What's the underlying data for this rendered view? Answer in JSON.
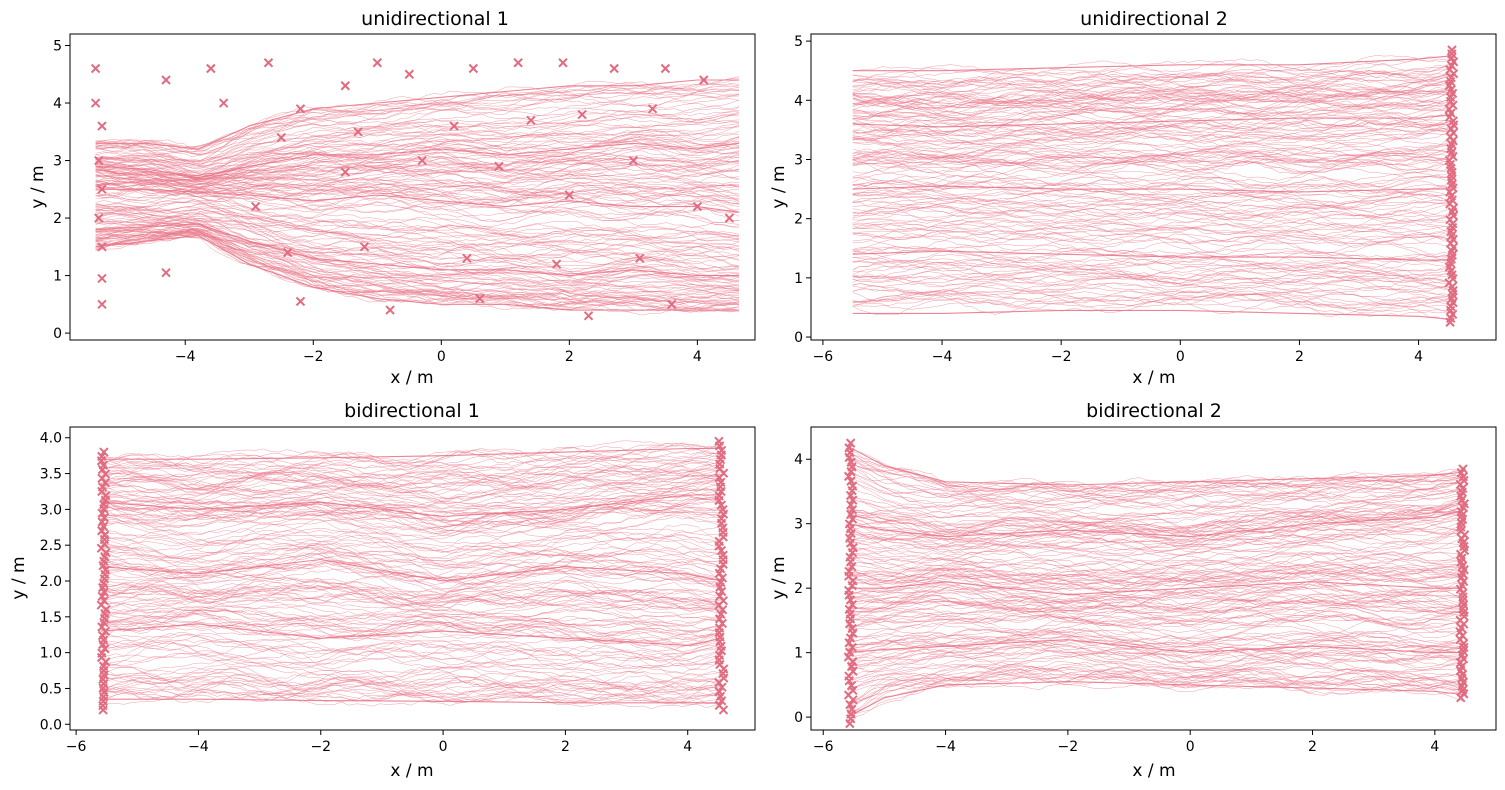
{
  "figure": {
    "accent_color": "#e8788a",
    "marker_color": "#e06c80"
  },
  "chart_data": [
    {
      "type": "line",
      "title": "unidirectional 1",
      "xlabel": "x / m",
      "ylabel": "y / m",
      "xlim": [
        -5.8,
        4.9
      ],
      "ylim": [
        -0.12,
        5.2
      ],
      "xticks": [
        -4,
        -2,
        0,
        2,
        4
      ],
      "xtick_labels": [
        "−4",
        "−2",
        "0",
        "2",
        "4"
      ],
      "yticks": [
        0,
        1,
        2,
        3,
        4,
        5
      ],
      "ytick_labels": [
        "0",
        "1",
        "2",
        "3",
        "4",
        "5"
      ],
      "series": [
        {
          "x": [
            -5.4,
            -4.6,
            -3.8,
            -3.0,
            -2.0,
            -1.0,
            0.0,
            1.0,
            2.0,
            3.0,
            4.0,
            4.65
          ],
          "y": [
            3.3,
            3.3,
            3.2,
            3.6,
            3.9,
            4.0,
            4.1,
            4.2,
            4.3,
            4.3,
            4.4,
            4.4
          ]
        },
        {
          "x": [
            -5.4,
            -4.6,
            -3.8,
            -3.0,
            -2.0,
            -1.0,
            0.0,
            1.0,
            2.0,
            3.0,
            4.0,
            4.65
          ],
          "y": [
            2.9,
            2.85,
            2.7,
            2.9,
            3.1,
            3.1,
            3.2,
            3.1,
            3.2,
            3.3,
            3.2,
            3.3
          ]
        },
        {
          "x": [
            -5.4,
            -4.6,
            -3.8,
            -3.0,
            -2.0,
            -1.0,
            0.0,
            1.0,
            2.0,
            3.0,
            4.0,
            4.65
          ],
          "y": [
            2.5,
            2.5,
            2.45,
            2.4,
            2.3,
            2.4,
            2.3,
            2.2,
            2.3,
            2.2,
            2.2,
            2.1
          ]
        },
        {
          "x": [
            -5.4,
            -4.6,
            -3.8,
            -3.0,
            -2.0,
            -1.0,
            0.0,
            1.0,
            2.0,
            3.0,
            4.0,
            4.65
          ],
          "y": [
            1.8,
            1.85,
            1.9,
            1.6,
            1.3,
            1.2,
            1.1,
            1.1,
            1.0,
            1.1,
            1.0,
            1.0
          ]
        },
        {
          "x": [
            -5.4,
            -4.6,
            -3.8,
            -3.0,
            -2.0,
            -1.0,
            0.0,
            1.0,
            2.0,
            3.0,
            4.0,
            4.65
          ],
          "y": [
            1.5,
            1.6,
            1.7,
            1.2,
            0.8,
            0.6,
            0.5,
            0.5,
            0.4,
            0.4,
            0.4,
            0.4
          ]
        }
      ],
      "start_markers": [
        {
          "x": -5.4,
          "y": 4.6
        },
        {
          "x": -5.4,
          "y": 4.0
        },
        {
          "x": -5.3,
          "y": 3.6
        },
        {
          "x": -5.35,
          "y": 3.0
        },
        {
          "x": -5.3,
          "y": 2.5
        },
        {
          "x": -5.35,
          "y": 2.0
        },
        {
          "x": -5.3,
          "y": 1.5
        },
        {
          "x": -5.3,
          "y": 0.95
        },
        {
          "x": -5.3,
          "y": 0.5
        },
        {
          "x": -4.3,
          "y": 4.4
        },
        {
          "x": -3.6,
          "y": 4.6
        },
        {
          "x": -4.3,
          "y": 1.05
        },
        {
          "x": -3.4,
          "y": 4.0
        },
        {
          "x": -2.7,
          "y": 4.7
        },
        {
          "x": -2.2,
          "y": 3.9
        },
        {
          "x": -1.5,
          "y": 4.3
        },
        {
          "x": -1.0,
          "y": 4.7
        },
        {
          "x": -0.5,
          "y": 4.5
        },
        {
          "x": 0.5,
          "y": 4.6
        },
        {
          "x": 1.2,
          "y": 4.7
        },
        {
          "x": 1.9,
          "y": 4.7
        },
        {
          "x": 2.7,
          "y": 4.6
        },
        {
          "x": 3.5,
          "y": 4.6
        },
        {
          "x": 4.1,
          "y": 4.4
        },
        {
          "x": -2.5,
          "y": 3.4
        },
        {
          "x": -1.3,
          "y": 3.5
        },
        {
          "x": 0.2,
          "y": 3.6
        },
        {
          "x": 1.4,
          "y": 3.7
        },
        {
          "x": 2.2,
          "y": 3.8
        },
        {
          "x": 3.3,
          "y": 3.9
        },
        {
          "x": -2.9,
          "y": 2.2
        },
        {
          "x": -1.5,
          "y": 2.8
        },
        {
          "x": -0.3,
          "y": 3.0
        },
        {
          "x": 0.9,
          "y": 2.9
        },
        {
          "x": 2.0,
          "y": 2.4
        },
        {
          "x": 3.0,
          "y": 3.0
        },
        {
          "x": 4.0,
          "y": 2.2
        },
        {
          "x": -2.4,
          "y": 1.4
        },
        {
          "x": -1.2,
          "y": 1.5
        },
        {
          "x": 0.4,
          "y": 1.3
        },
        {
          "x": 1.8,
          "y": 1.2
        },
        {
          "x": 3.1,
          "y": 1.3
        },
        {
          "x": -2.2,
          "y": 0.55
        },
        {
          "x": -0.8,
          "y": 0.4
        },
        {
          "x": 0.6,
          "y": 0.6
        },
        {
          "x": 2.3,
          "y": 0.3
        },
        {
          "x": 3.6,
          "y": 0.5
        },
        {
          "x": 4.5,
          "y": 2.0
        }
      ]
    },
    {
      "type": "line",
      "title": "unidirectional 2",
      "xlabel": "x / m",
      "ylabel": "y / m",
      "xlim": [
        -6.2,
        5.3
      ],
      "ylim": [
        -0.05,
        5.12
      ],
      "xticks": [
        -6,
        -4,
        -2,
        0,
        2,
        4
      ],
      "xtick_labels": [
        "−6",
        "−4",
        "−2",
        "0",
        "2",
        "4"
      ],
      "yticks": [
        0,
        1,
        2,
        3,
        4,
        5
      ],
      "ytick_labels": [
        "0",
        "1",
        "2",
        "3",
        "4",
        "5"
      ],
      "series": [
        {
          "x": [
            -5.5,
            -4.0,
            -2.0,
            0.0,
            2.0,
            4.0,
            4.55
          ],
          "y": [
            4.5,
            4.5,
            4.55,
            4.6,
            4.6,
            4.7,
            4.75
          ]
        },
        {
          "x": [
            -5.5,
            -4.0,
            -2.0,
            0.0,
            2.0,
            4.0,
            4.55
          ],
          "y": [
            3.6,
            3.55,
            3.6,
            3.65,
            3.7,
            3.7,
            3.75
          ]
        },
        {
          "x": [
            -5.5,
            -4.0,
            -2.0,
            0.0,
            2.0,
            4.0,
            4.55
          ],
          "y": [
            2.5,
            2.55,
            2.5,
            2.5,
            2.45,
            2.5,
            2.5
          ]
        },
        {
          "x": [
            -5.5,
            -4.0,
            -2.0,
            0.0,
            2.0,
            4.0,
            4.55
          ],
          "y": [
            1.4,
            1.45,
            1.4,
            1.35,
            1.35,
            1.3,
            1.3
          ]
        },
        {
          "x": [
            -5.5,
            -4.0,
            -2.0,
            0.0,
            2.0,
            4.0,
            4.55
          ],
          "y": [
            0.4,
            0.4,
            0.45,
            0.45,
            0.4,
            0.35,
            0.3
          ]
        }
      ],
      "end_markers_x": 4.55,
      "end_markers_y_range": [
        0.25,
        4.85
      ]
    },
    {
      "type": "line",
      "title": "bidirectional 1",
      "xlabel": "x / m",
      "ylabel": "y / m",
      "xlim": [
        -6.1,
        5.1
      ],
      "ylim": [
        -0.08,
        4.15
      ],
      "xticks": [
        -6,
        -4,
        -2,
        0,
        2,
        4
      ],
      "xtick_labels": [
        "−6",
        "−4",
        "−2",
        "0",
        "2",
        "4"
      ],
      "yticks": [
        0.0,
        0.5,
        1.0,
        1.5,
        2.0,
        2.5,
        3.0,
        3.5,
        4.0
      ],
      "ytick_labels": [
        "0.0",
        "0.5",
        "1.0",
        "1.5",
        "2.0",
        "2.5",
        "3.0",
        "3.5",
        "4.0"
      ],
      "series": [
        {
          "x": [
            -5.6,
            -4.0,
            -2.0,
            0.0,
            2.0,
            4.0,
            4.55
          ],
          "y": [
            3.7,
            3.7,
            3.72,
            3.75,
            3.8,
            3.85,
            3.85
          ]
        },
        {
          "x": [
            -5.6,
            -4.0,
            -2.0,
            0.0,
            2.0,
            4.0,
            4.55
          ],
          "y": [
            3.1,
            3.0,
            3.1,
            2.9,
            3.0,
            3.2,
            3.2
          ]
        },
        {
          "x": [
            -5.6,
            -4.0,
            -2.0,
            0.0,
            2.0,
            4.0,
            4.55
          ],
          "y": [
            2.2,
            2.1,
            2.3,
            2.0,
            2.2,
            2.1,
            2.0
          ]
        },
        {
          "x": [
            -5.6,
            -4.0,
            -2.0,
            0.0,
            2.0,
            4.0,
            4.55
          ],
          "y": [
            1.3,
            1.4,
            1.2,
            1.3,
            1.2,
            1.1,
            1.2
          ]
        },
        {
          "x": [
            -5.6,
            -4.0,
            -2.0,
            0.0,
            2.0,
            4.0,
            4.55
          ],
          "y": [
            0.35,
            0.35,
            0.33,
            0.32,
            0.3,
            0.3,
            0.3
          ]
        }
      ],
      "left_markers_x": -5.55,
      "left_markers_y_range": [
        0.2,
        3.8
      ],
      "right_markers_x": 4.55,
      "right_markers_y_range": [
        0.2,
        3.95
      ]
    },
    {
      "type": "line",
      "title": "bidirectional 2",
      "xlabel": "x / m",
      "ylabel": "y / m",
      "xlim": [
        -6.2,
        5.0
      ],
      "ylim": [
        -0.2,
        4.5
      ],
      "xticks": [
        -6,
        -4,
        -2,
        0,
        2,
        4
      ],
      "xtick_labels": [
        "−6",
        "−4",
        "−2",
        "0",
        "2",
        "4"
      ],
      "yticks": [
        0,
        1,
        2,
        3,
        4
      ],
      "ytick_labels": [
        "0",
        "1",
        "2",
        "3",
        "4"
      ],
      "series": [
        {
          "x": [
            -5.6,
            -5.0,
            -4.0,
            -2.0,
            0.0,
            2.0,
            4.0,
            4.45
          ],
          "y": [
            4.2,
            3.9,
            3.65,
            3.6,
            3.65,
            3.7,
            3.75,
            3.8
          ]
        },
        {
          "x": [
            -5.6,
            -5.0,
            -4.0,
            -2.0,
            0.0,
            2.0,
            4.0,
            4.45
          ],
          "y": [
            3.0,
            2.9,
            2.8,
            2.9,
            2.8,
            3.0,
            3.1,
            3.2
          ]
        },
        {
          "x": [
            -5.6,
            -5.0,
            -4.0,
            -2.0,
            0.0,
            2.0,
            4.0,
            4.45
          ],
          "y": [
            2.0,
            2.0,
            2.1,
            1.9,
            2.0,
            2.1,
            2.0,
            2.0
          ]
        },
        {
          "x": [
            -5.6,
            -5.0,
            -4.0,
            -2.0,
            0.0,
            2.0,
            4.0,
            4.45
          ],
          "y": [
            1.0,
            1.05,
            1.1,
            1.2,
            1.0,
            1.1,
            1.0,
            1.0
          ]
        },
        {
          "x": [
            -5.6,
            -5.0,
            -4.0,
            -2.0,
            0.0,
            2.0,
            4.0,
            4.45
          ],
          "y": [
            0.0,
            0.3,
            0.5,
            0.55,
            0.5,
            0.45,
            0.4,
            0.35
          ]
        }
      ],
      "left_markers_x": -5.55,
      "left_markers_y_range": [
        -0.1,
        4.25
      ],
      "right_markers_x": 4.45,
      "right_markers_y_range": [
        0.3,
        3.85
      ]
    }
  ]
}
